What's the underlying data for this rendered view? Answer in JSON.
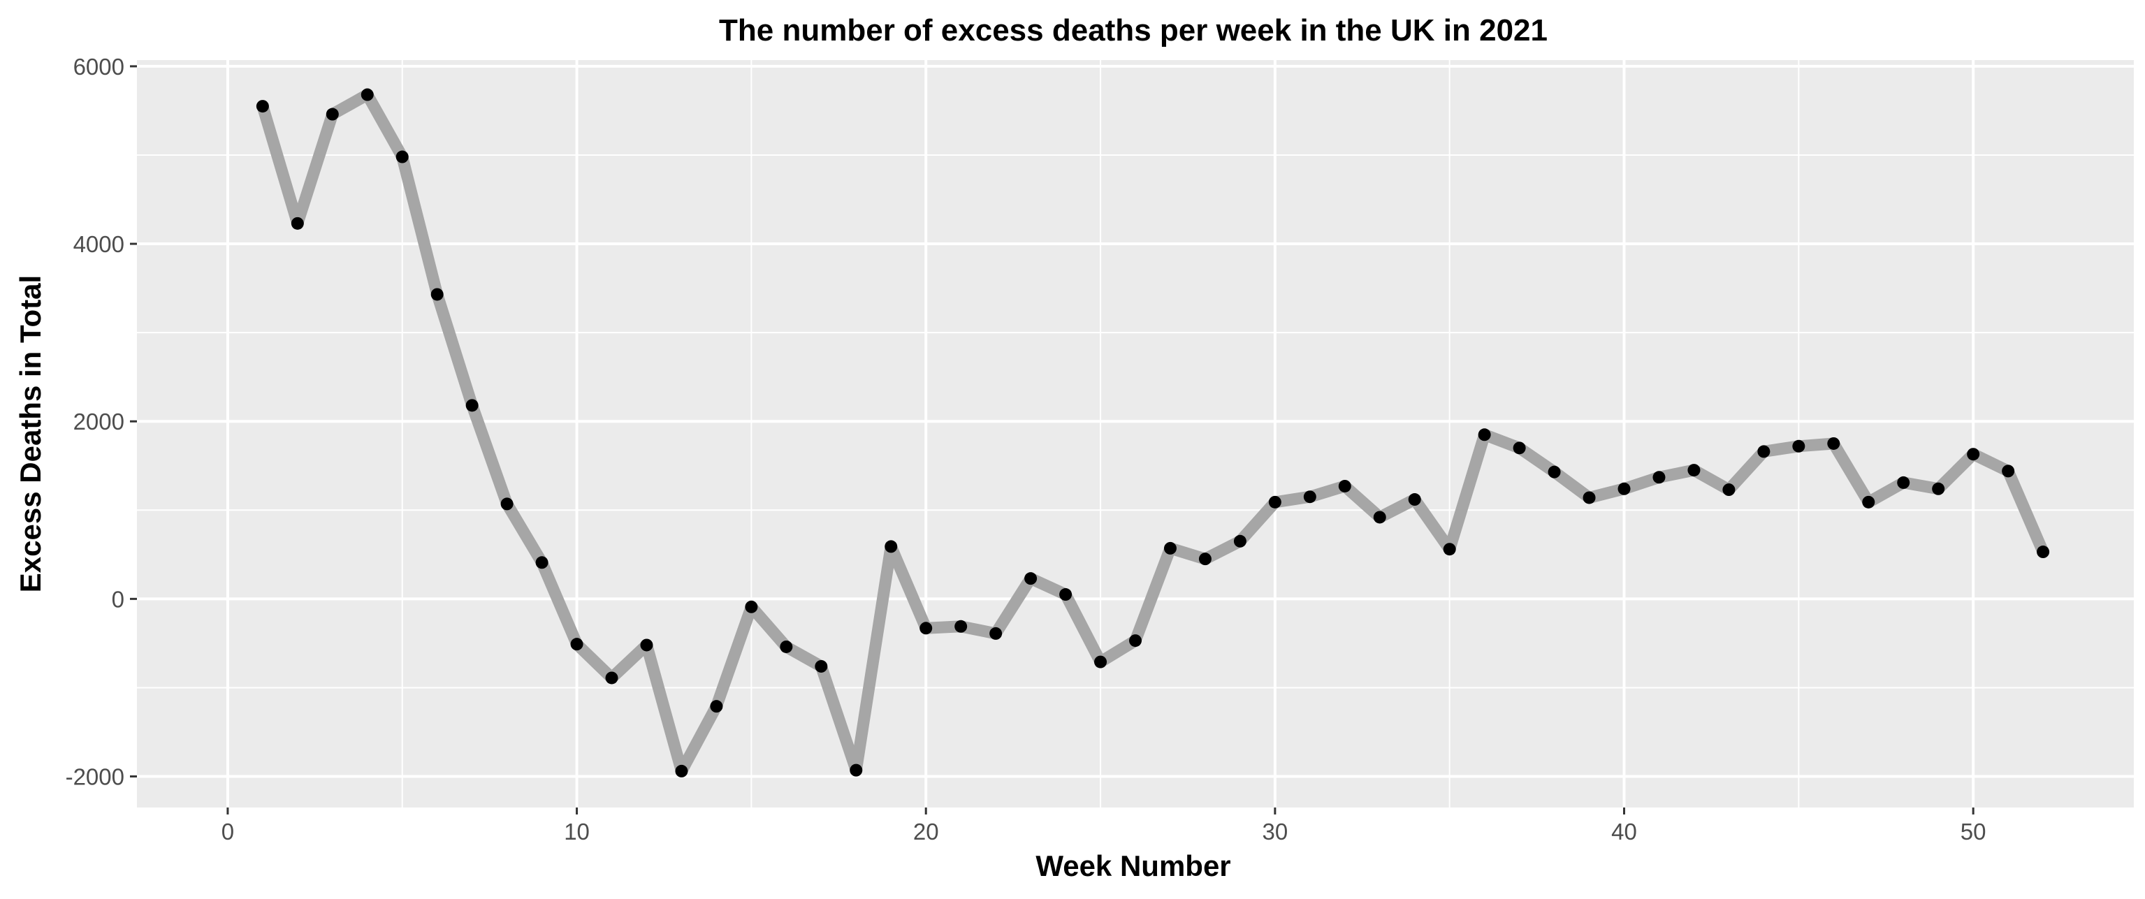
{
  "chart_data": {
    "type": "line",
    "title": "The number of excess deaths per week in the UK in 2021",
    "xlabel": "Week Number",
    "ylabel": "Excess Deaths in Total",
    "xlim": [
      -2.6,
      54.6
    ],
    "ylim": [
      -2350,
      6070
    ],
    "x_ticks": [
      0,
      10,
      20,
      30,
      40,
      50
    ],
    "x_tick_labels": [
      "0",
      "10",
      "20",
      "30",
      "40",
      "50"
    ],
    "x_minor_ticks": [
      5,
      15,
      25,
      35,
      45
    ],
    "y_ticks": [
      -2000,
      0,
      2000,
      4000,
      6000
    ],
    "y_tick_labels": [
      "-2000",
      "0",
      "2000",
      "4000",
      "6000"
    ],
    "y_minor_ticks": [
      -1000,
      1000,
      3000,
      5000
    ],
    "grid": true,
    "line_color": "#a6a6a6",
    "point_color": "#000000",
    "panel_background": "#ebebeb",
    "series": [
      {
        "x": [
          1,
          2,
          3,
          4,
          5,
          6,
          7,
          8,
          9,
          10,
          11,
          12,
          13,
          14,
          15,
          16,
          17,
          18,
          19,
          20,
          21,
          22,
          23,
          24,
          25,
          26,
          27,
          28,
          29,
          30,
          31,
          32,
          33,
          34,
          35,
          36,
          37,
          38,
          39,
          40,
          41,
          42,
          43,
          44,
          45,
          46,
          47,
          48,
          49,
          50,
          51,
          52
        ],
        "values": [
          5550,
          4230,
          5460,
          5680,
          4980,
          3430,
          2180,
          1070,
          410,
          -510,
          -890,
          -520,
          -1940,
          -1210,
          -90,
          -540,
          -760,
          -1930,
          590,
          -330,
          -310,
          -390,
          230,
          50,
          -710,
          -470,
          570,
          450,
          650,
          1090,
          1150,
          1270,
          920,
          1120,
          560,
          1850,
          1700,
          1430,
          1140,
          1240,
          1370,
          1450,
          1230,
          1660,
          1720,
          1750,
          1090,
          1310,
          1240,
          1630,
          1440,
          530
        ]
      }
    ]
  }
}
